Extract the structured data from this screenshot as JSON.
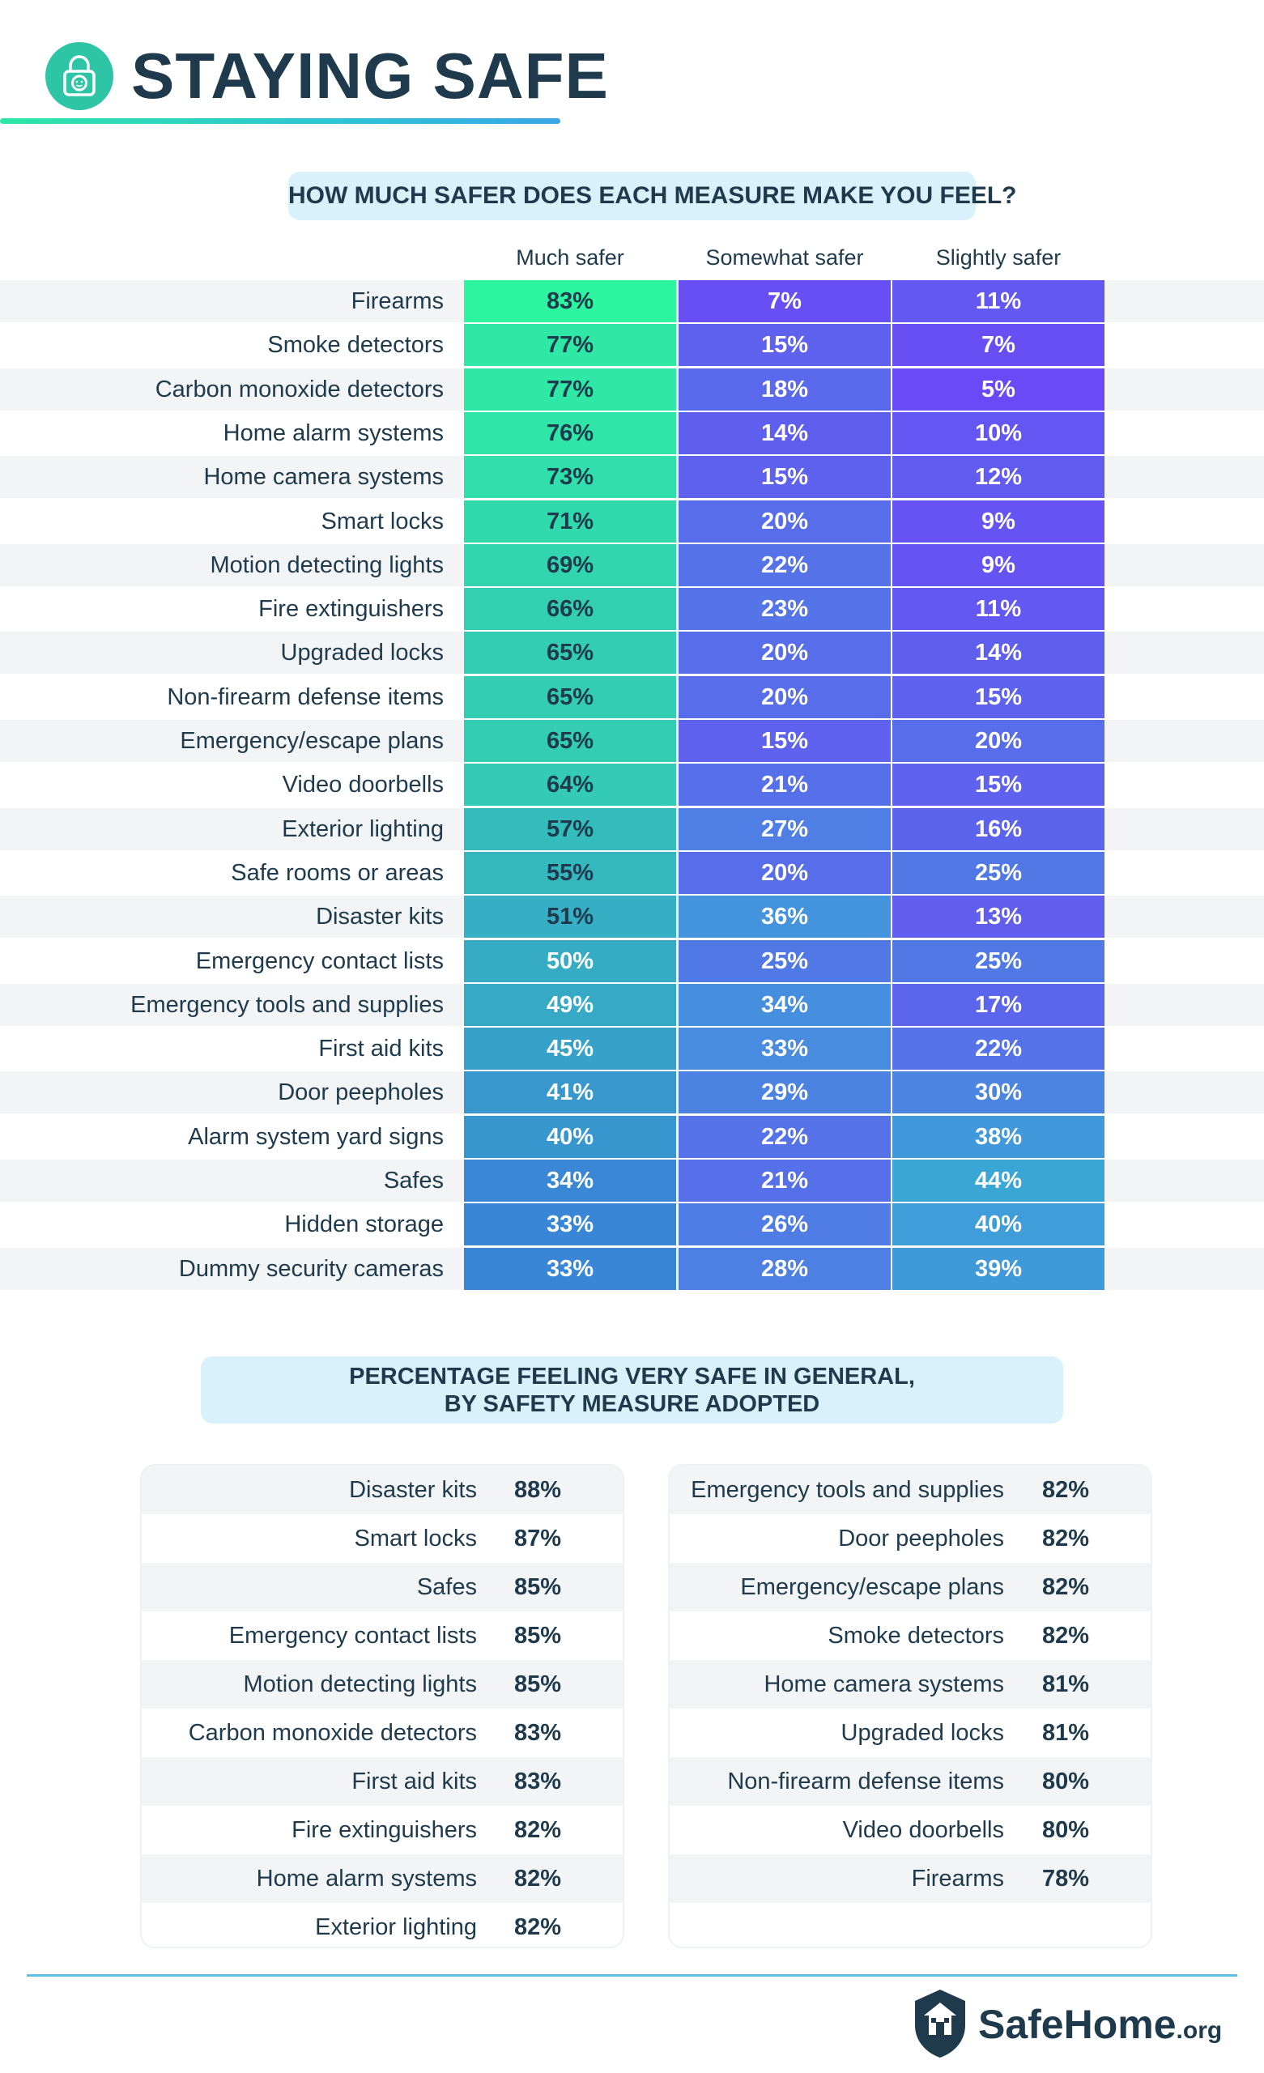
{
  "header": {
    "title": "STAYING SAFE",
    "icon": "lock-icon",
    "accent_color": "#2ec4a6"
  },
  "section1": {
    "title": "HOW MUCH SAFER DOES EACH MEASURE MAKE YOU FEEL?"
  },
  "section2": {
    "title_line1": "PERCENTAGE FEELING VERY SAFE IN GENERAL,",
    "title_line2": "BY SAFETY MEASURE ADOPTED"
  },
  "chart_data": [
    {
      "type": "heatmap",
      "title": "HOW MUCH SAFER DOES EACH MEASURE MAKE YOU FEEL?",
      "columns": [
        "Much safer",
        "Somewhat safer",
        "Slightly safer"
      ],
      "unit": "%",
      "color_scale": {
        "low": "#3a86d6",
        "high_much": "#2ef5a0",
        "high_other": "#6a4af6"
      },
      "rows": [
        {
          "label": "Firearms",
          "values": [
            83,
            7,
            11
          ]
        },
        {
          "label": "Smoke detectors",
          "values": [
            77,
            15,
            7
          ]
        },
        {
          "label": "Carbon monoxide detectors",
          "values": [
            77,
            18,
            5
          ]
        },
        {
          "label": "Home alarm systems",
          "values": [
            76,
            14,
            10
          ]
        },
        {
          "label": "Home camera systems",
          "values": [
            73,
            15,
            12
          ]
        },
        {
          "label": "Smart locks",
          "values": [
            71,
            20,
            9
          ]
        },
        {
          "label": "Motion detecting lights",
          "values": [
            69,
            22,
            9
          ]
        },
        {
          "label": "Fire extinguishers",
          "values": [
            66,
            23,
            11
          ]
        },
        {
          "label": "Upgraded locks",
          "values": [
            65,
            20,
            14
          ]
        },
        {
          "label": "Non-firearm defense items",
          "values": [
            65,
            20,
            15
          ]
        },
        {
          "label": "Emergency/escape plans",
          "values": [
            65,
            15,
            20
          ]
        },
        {
          "label": "Video doorbells",
          "values": [
            64,
            21,
            15
          ]
        },
        {
          "label": "Exterior lighting",
          "values": [
            57,
            27,
            16
          ]
        },
        {
          "label": "Safe rooms or areas",
          "values": [
            55,
            20,
            25
          ]
        },
        {
          "label": "Disaster kits",
          "values": [
            51,
            36,
            13
          ]
        },
        {
          "label": "Emergency contact lists",
          "values": [
            50,
            25,
            25
          ]
        },
        {
          "label": "Emergency tools and supplies",
          "values": [
            49,
            34,
            17
          ]
        },
        {
          "label": "First aid kits",
          "values": [
            45,
            33,
            22
          ]
        },
        {
          "label": "Door peepholes",
          "values": [
            41,
            29,
            30
          ]
        },
        {
          "label": "Alarm system yard signs",
          "values": [
            40,
            22,
            38
          ]
        },
        {
          "label": "Safes",
          "values": [
            34,
            21,
            44
          ]
        },
        {
          "label": "Hidden storage",
          "values": [
            33,
            26,
            40
          ]
        },
        {
          "label": "Dummy security cameras",
          "values": [
            33,
            28,
            39
          ]
        }
      ]
    },
    {
      "type": "table",
      "title": "PERCENTAGE FEELING VERY SAFE IN GENERAL, BY SAFETY MEASURE ADOPTED",
      "unit": "%",
      "left": [
        {
          "label": "Disaster kits",
          "value": 88
        },
        {
          "label": "Smart locks",
          "value": 87
        },
        {
          "label": "Safes",
          "value": 85
        },
        {
          "label": "Emergency contact lists",
          "value": 85
        },
        {
          "label": "Motion detecting lights",
          "value": 85
        },
        {
          "label": "Carbon monoxide detectors",
          "value": 83
        },
        {
          "label": "First aid kits",
          "value": 83
        },
        {
          "label": "Fire extinguishers",
          "value": 82
        },
        {
          "label": "Home alarm systems",
          "value": 82
        },
        {
          "label": "Exterior lighting",
          "value": 82
        }
      ],
      "right": [
        {
          "label": "Emergency tools and supplies",
          "value": 82
        },
        {
          "label": "Door peepholes",
          "value": 82
        },
        {
          "label": "Emergency/escape plans",
          "value": 82
        },
        {
          "label": "Smoke detectors",
          "value": 82
        },
        {
          "label": "Home camera systems",
          "value": 81
        },
        {
          "label": "Upgraded locks",
          "value": 81
        },
        {
          "label": "Non-firearm defense items",
          "value": 80
        },
        {
          "label": "Video doorbells",
          "value": 80
        },
        {
          "label": "Firearms",
          "value": 78
        }
      ]
    }
  ],
  "footer": {
    "logo_name": "SafeHome",
    "logo_suffix": ".org",
    "logo_icon": "house-shield-icon",
    "divider_color": "#5bc0e4"
  }
}
